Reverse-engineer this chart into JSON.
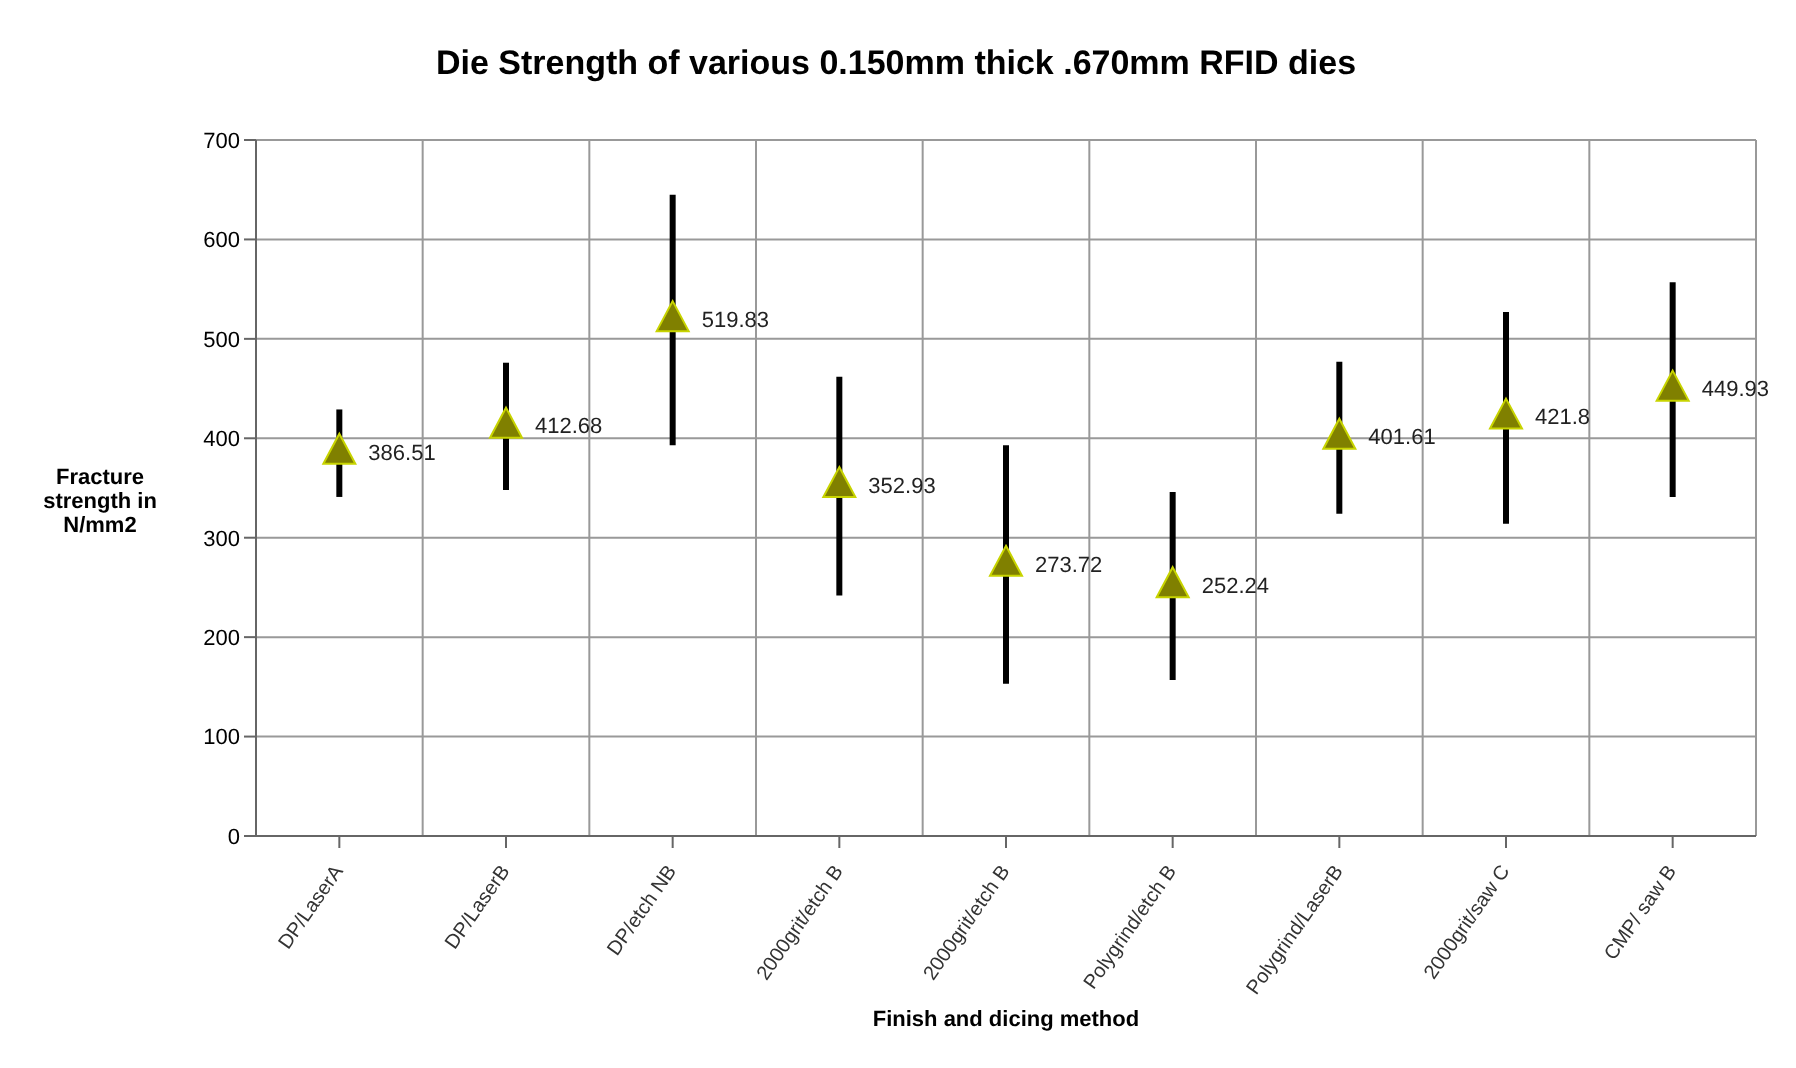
{
  "chart_data": {
    "type": "scatter",
    "title": "Die Strength of various 0.150mm thick .670mm RFID dies",
    "xlabel": "Finish and dicing method",
    "ylabel": "Fracture strength in N/mm2",
    "categories": [
      "DP/LaserA",
      "DP/LaserB",
      "DP/etch NB",
      "2000grit/etch B",
      "2000grit/etch B",
      "Polygrind/etch B",
      "Polygrind/LaserB",
      "2000grit/saw C",
      "CMP/ saw B"
    ],
    "series": [
      {
        "color": "#808000",
        "values": [
          386.51,
          412.68,
          519.83,
          352.93,
          273.72,
          252.24,
          401.61,
          421.8,
          449.93
        ],
        "errors": [
          [
            341,
            429
          ],
          [
            348,
            476
          ],
          [
            393,
            645
          ],
          [
            242,
            462
          ],
          [
            153,
            393
          ],
          [
            157,
            346
          ],
          [
            324,
            477
          ],
          [
            314,
            527
          ],
          [
            341,
            557
          ]
        ]
      }
    ],
    "ylim": [
      0,
      700
    ],
    "yticks": [
      0,
      100,
      200,
      300,
      400,
      500,
      600,
      700
    ],
    "grid": true,
    "marker": "triangle",
    "data_labels": true
  }
}
